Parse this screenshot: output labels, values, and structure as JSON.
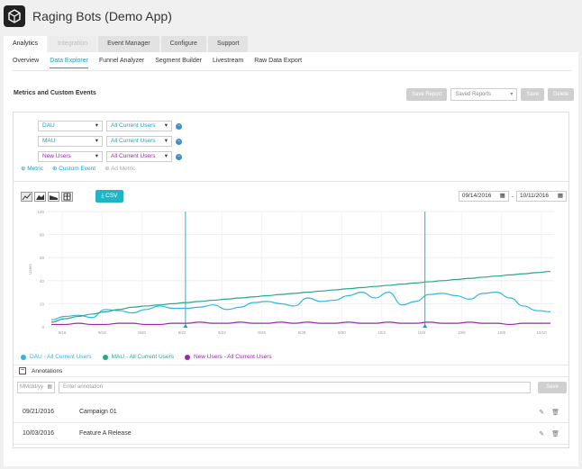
{
  "app": {
    "title": "Raging Bots (Demo App)"
  },
  "top_tabs": [
    {
      "label": "Analytics",
      "state": "active"
    },
    {
      "label": "Integration",
      "state": "disabled"
    },
    {
      "label": "Event Manager",
      "state": "normal"
    },
    {
      "label": "Configure",
      "state": "normal"
    },
    {
      "label": "Support",
      "state": "normal"
    }
  ],
  "sub_tabs": [
    {
      "label": "Overview"
    },
    {
      "label": "Data Explorer",
      "active": true
    },
    {
      "label": "Funnel Analyzer"
    },
    {
      "label": "Segment Builder"
    },
    {
      "label": "Livestream"
    },
    {
      "label": "Raw Data Export"
    }
  ],
  "section_title": "Metrics and Custom Events",
  "report_controls": {
    "save_report": "Save Report",
    "saved_reports": "Saved Reports",
    "save": "Save",
    "delete": "Delete"
  },
  "metrics": [
    {
      "metric": "DAU",
      "segment": "All Current Users",
      "color": "#1a9fc5"
    },
    {
      "metric": "MAU",
      "segment": "All Current Users",
      "color": "#1a9fc5"
    },
    {
      "metric": "New Users",
      "segment": "All Current Users",
      "color": "#9b27af"
    }
  ],
  "add_links": {
    "metric": "Metric",
    "custom_event": "Custom Event",
    "ad_metric": "Ad Metric"
  },
  "csv_label": "CSV",
  "date_range": {
    "start": "09/14/2016",
    "end": "10/11/2016",
    "separator": "-"
  },
  "legend": [
    {
      "label": "DAU - All Current Users",
      "color": "#2eb7e0"
    },
    {
      "label": "MAU - All Current Users",
      "color": "#26a88a"
    },
    {
      "label": "New Users - All Current Users",
      "color": "#9b27af"
    }
  ],
  "annotations": {
    "header": "Annotations",
    "date_placeholder": "MM/dd/yy",
    "text_placeholder": "Enter annotation",
    "save": "Save",
    "items": [
      {
        "date": "09/21/2016",
        "name": "Campaign 01"
      },
      {
        "date": "10/03/2016",
        "name": "Feature A Release"
      }
    ]
  },
  "chart_data": {
    "type": "line",
    "ylabel": "Users",
    "ylim": [
      0,
      100
    ],
    "y_ticks": [
      "0",
      "20",
      "40",
      "60",
      "80",
      "100"
    ],
    "x_ticks": [
      "9/16",
      "9/18",
      "9/20",
      "9/22",
      "9/24",
      "9/26",
      "9/28",
      "9/30",
      "10/2",
      "10/4",
      "10/6",
      "10/8",
      "10/10"
    ],
    "series": [
      {
        "name": "DAU - All Current Users",
        "color": "#2eb7e0",
        "values": [
          6,
          9,
          10,
          8,
          15,
          14,
          12,
          15,
          18,
          16,
          16,
          17,
          19,
          15,
          17,
          21,
          22,
          20,
          18,
          25,
          22,
          23,
          27,
          30,
          25,
          30,
          19,
          22,
          28,
          29,
          27,
          24,
          29,
          30,
          25,
          18,
          14,
          13
        ]
      },
      {
        "name": "MAU - All Current Users",
        "color": "#26a88a",
        "values": [
          4,
          7,
          9,
          11,
          13,
          15,
          17,
          18,
          19,
          20,
          21,
          22,
          23,
          24,
          25,
          26,
          27,
          28,
          29,
          30,
          31,
          32,
          33,
          34,
          35,
          36,
          37,
          38,
          39,
          40,
          41,
          42,
          43,
          44,
          45,
          46,
          47,
          48
        ]
      },
      {
        "name": "New Users - All Current Users",
        "color": "#9b27af",
        "values": [
          2,
          2,
          3,
          2,
          2,
          3,
          3,
          2,
          2,
          3,
          3,
          4,
          3,
          3,
          4,
          3,
          3,
          4,
          3,
          4,
          3,
          3,
          4,
          3,
          3,
          4,
          3,
          3,
          4,
          3,
          3,
          4,
          3,
          3,
          2,
          3,
          3,
          3
        ]
      }
    ],
    "annotation_markers": [
      "9/21",
      "10/3"
    ]
  }
}
